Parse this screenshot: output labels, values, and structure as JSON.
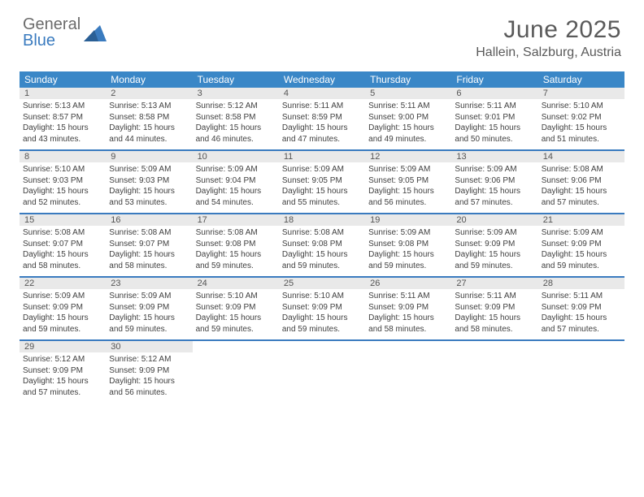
{
  "brand": {
    "line1": "General",
    "line2": "Blue"
  },
  "title": "June 2025",
  "location": "Hallein, Salzburg, Austria",
  "colors": {
    "header_bg": "#3a87c7",
    "week_border": "#3a7bbf",
    "daynum_bg": "#e9e9e9",
    "text_dark": "#404040",
    "title_color": "#5a5a5a"
  },
  "day_names": [
    "Sunday",
    "Monday",
    "Tuesday",
    "Wednesday",
    "Thursday",
    "Friday",
    "Saturday"
  ],
  "weeks": [
    [
      {
        "n": "1",
        "sr": "5:13 AM",
        "ss": "8:57 PM",
        "dl": "15 hours and 43 minutes."
      },
      {
        "n": "2",
        "sr": "5:13 AM",
        "ss": "8:58 PM",
        "dl": "15 hours and 44 minutes."
      },
      {
        "n": "3",
        "sr": "5:12 AM",
        "ss": "8:58 PM",
        "dl": "15 hours and 46 minutes."
      },
      {
        "n": "4",
        "sr": "5:11 AM",
        "ss": "8:59 PM",
        "dl": "15 hours and 47 minutes."
      },
      {
        "n": "5",
        "sr": "5:11 AM",
        "ss": "9:00 PM",
        "dl": "15 hours and 49 minutes."
      },
      {
        "n": "6",
        "sr": "5:11 AM",
        "ss": "9:01 PM",
        "dl": "15 hours and 50 minutes."
      },
      {
        "n": "7",
        "sr": "5:10 AM",
        "ss": "9:02 PM",
        "dl": "15 hours and 51 minutes."
      }
    ],
    [
      {
        "n": "8",
        "sr": "5:10 AM",
        "ss": "9:03 PM",
        "dl": "15 hours and 52 minutes."
      },
      {
        "n": "9",
        "sr": "5:09 AM",
        "ss": "9:03 PM",
        "dl": "15 hours and 53 minutes."
      },
      {
        "n": "10",
        "sr": "5:09 AM",
        "ss": "9:04 PM",
        "dl": "15 hours and 54 minutes."
      },
      {
        "n": "11",
        "sr": "5:09 AM",
        "ss": "9:05 PM",
        "dl": "15 hours and 55 minutes."
      },
      {
        "n": "12",
        "sr": "5:09 AM",
        "ss": "9:05 PM",
        "dl": "15 hours and 56 minutes."
      },
      {
        "n": "13",
        "sr": "5:09 AM",
        "ss": "9:06 PM",
        "dl": "15 hours and 57 minutes."
      },
      {
        "n": "14",
        "sr": "5:08 AM",
        "ss": "9:06 PM",
        "dl": "15 hours and 57 minutes."
      }
    ],
    [
      {
        "n": "15",
        "sr": "5:08 AM",
        "ss": "9:07 PM",
        "dl": "15 hours and 58 minutes."
      },
      {
        "n": "16",
        "sr": "5:08 AM",
        "ss": "9:07 PM",
        "dl": "15 hours and 58 minutes."
      },
      {
        "n": "17",
        "sr": "5:08 AM",
        "ss": "9:08 PM",
        "dl": "15 hours and 59 minutes."
      },
      {
        "n": "18",
        "sr": "5:08 AM",
        "ss": "9:08 PM",
        "dl": "15 hours and 59 minutes."
      },
      {
        "n": "19",
        "sr": "5:09 AM",
        "ss": "9:08 PM",
        "dl": "15 hours and 59 minutes."
      },
      {
        "n": "20",
        "sr": "5:09 AM",
        "ss": "9:09 PM",
        "dl": "15 hours and 59 minutes."
      },
      {
        "n": "21",
        "sr": "5:09 AM",
        "ss": "9:09 PM",
        "dl": "15 hours and 59 minutes."
      }
    ],
    [
      {
        "n": "22",
        "sr": "5:09 AM",
        "ss": "9:09 PM",
        "dl": "15 hours and 59 minutes."
      },
      {
        "n": "23",
        "sr": "5:09 AM",
        "ss": "9:09 PM",
        "dl": "15 hours and 59 minutes."
      },
      {
        "n": "24",
        "sr": "5:10 AM",
        "ss": "9:09 PM",
        "dl": "15 hours and 59 minutes."
      },
      {
        "n": "25",
        "sr": "5:10 AM",
        "ss": "9:09 PM",
        "dl": "15 hours and 59 minutes."
      },
      {
        "n": "26",
        "sr": "5:11 AM",
        "ss": "9:09 PM",
        "dl": "15 hours and 58 minutes."
      },
      {
        "n": "27",
        "sr": "5:11 AM",
        "ss": "9:09 PM",
        "dl": "15 hours and 58 minutes."
      },
      {
        "n": "28",
        "sr": "5:11 AM",
        "ss": "9:09 PM",
        "dl": "15 hours and 57 minutes."
      }
    ],
    [
      {
        "n": "29",
        "sr": "5:12 AM",
        "ss": "9:09 PM",
        "dl": "15 hours and 57 minutes."
      },
      {
        "n": "30",
        "sr": "5:12 AM",
        "ss": "9:09 PM",
        "dl": "15 hours and 56 minutes."
      },
      null,
      null,
      null,
      null,
      null
    ]
  ],
  "labels": {
    "sunrise": "Sunrise:",
    "sunset": "Sunset:",
    "daylight": "Daylight:"
  }
}
